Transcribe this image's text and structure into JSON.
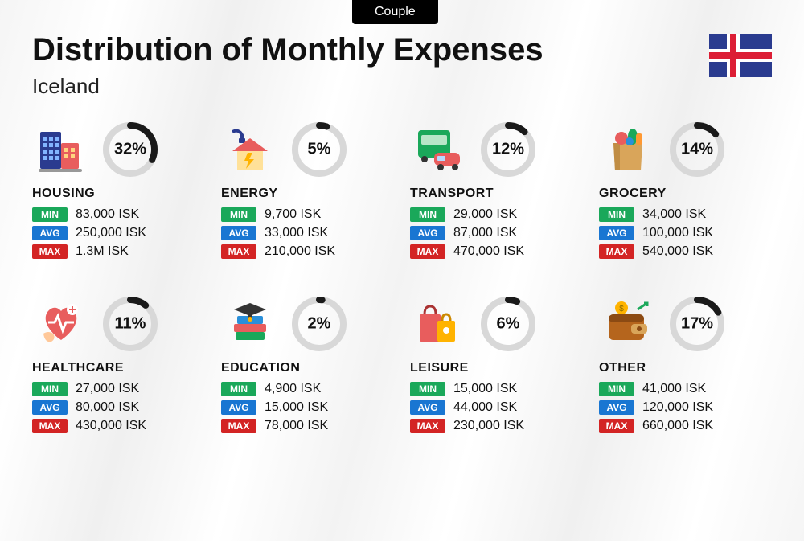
{
  "tab_label": "Couple",
  "title": "Distribution of Monthly Expenses",
  "subtitle": "Iceland",
  "flag": {
    "bg": "#2a3b8f",
    "cross_outer": "#ffffff",
    "cross_inner": "#dc1e35"
  },
  "ring": {
    "track_color": "#d8d8d8",
    "progress_color": "#1a1a1a",
    "stroke_width": 8,
    "radius": 30
  },
  "badges": {
    "min": {
      "label": "MIN",
      "color": "#1aa85a"
    },
    "avg": {
      "label": "AVG",
      "color": "#1976d2"
    },
    "max": {
      "label": "MAX",
      "color": "#d32424"
    }
  },
  "categories": [
    {
      "key": "housing",
      "name": "HOUSING",
      "percent": 32,
      "min": "83,000 ISK",
      "avg": "250,000 ISK",
      "max": "1.3M ISK",
      "icon": "buildings"
    },
    {
      "key": "energy",
      "name": "ENERGY",
      "percent": 5,
      "min": "9,700 ISK",
      "avg": "33,000 ISK",
      "max": "210,000 ISK",
      "icon": "house-energy"
    },
    {
      "key": "transport",
      "name": "TRANSPORT",
      "percent": 12,
      "min": "29,000 ISK",
      "avg": "87,000 ISK",
      "max": "470,000 ISK",
      "icon": "bus-car"
    },
    {
      "key": "grocery",
      "name": "GROCERY",
      "percent": 14,
      "min": "34,000 ISK",
      "avg": "100,000 ISK",
      "max": "540,000 ISK",
      "icon": "grocery-bag"
    },
    {
      "key": "healthcare",
      "name": "HEALTHCARE",
      "percent": 11,
      "min": "27,000 ISK",
      "avg": "80,000 ISK",
      "max": "430,000 ISK",
      "icon": "heart-health"
    },
    {
      "key": "education",
      "name": "EDUCATION",
      "percent": 2,
      "min": "4,900 ISK",
      "avg": "15,000 ISK",
      "max": "78,000 ISK",
      "icon": "books-cap"
    },
    {
      "key": "leisure",
      "name": "LEISURE",
      "percent": 6,
      "min": "15,000 ISK",
      "avg": "44,000 ISK",
      "max": "230,000 ISK",
      "icon": "shopping-bags"
    },
    {
      "key": "other",
      "name": "OTHER",
      "percent": 17,
      "min": "41,000 ISK",
      "avg": "120,000 ISK",
      "max": "660,000 ISK",
      "icon": "wallet"
    }
  ]
}
